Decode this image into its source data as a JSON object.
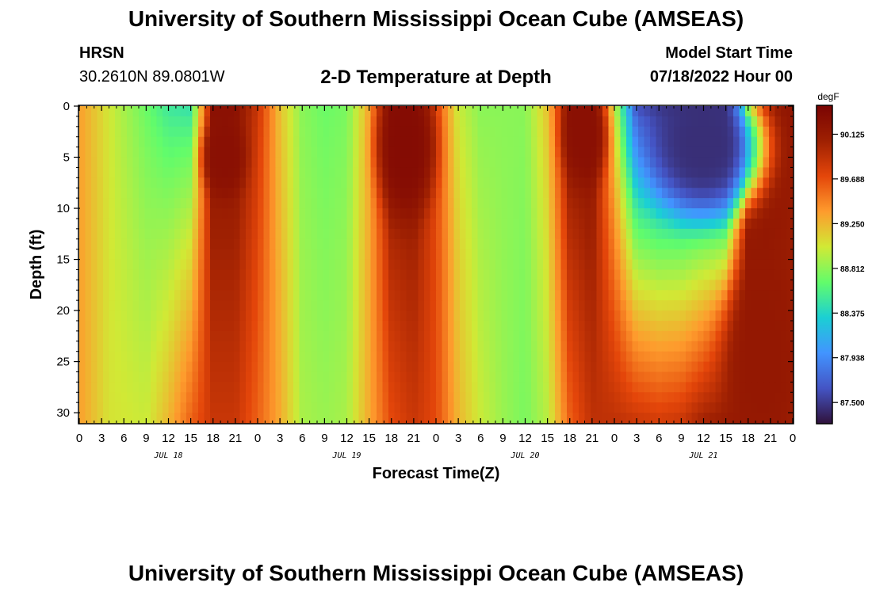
{
  "header": {
    "title": "University of Southern Mississippi Ocean Cube (AMSEAS)",
    "station": "HRSN",
    "coords": "30.2610N  89.0801W",
    "subtitle": "2-D Temperature at Depth",
    "start_label": "Model Start Time",
    "start_value": "07/18/2022 Hour 00"
  },
  "footer": {
    "title": "University of Southern Mississippi Ocean Cube (AMSEAS)"
  },
  "colors": {
    "palette": [
      "#30123b",
      "#4454c4",
      "#4294ff",
      "#1bcfd4",
      "#62fc6b",
      "#d1e935",
      "#fe9b2d",
      "#e4460a",
      "#9e2002",
      "#7a0403"
    ],
    "frame": "#000000"
  },
  "chart_data": {
    "type": "heatmap",
    "title": "2-D Temperature at Depth",
    "xlabel": "Forecast Time(Z)",
    "ylabel": "Depth (ft)",
    "x_hours_range": [
      0,
      96
    ],
    "x_tick_step_hours": 3,
    "x_tick_labels": [
      "0",
      "3",
      "6",
      "9",
      "12",
      "15",
      "18",
      "21",
      "0",
      "3",
      "6",
      "9",
      "12",
      "15",
      "18",
      "21",
      "0",
      "3",
      "6",
      "9",
      "12",
      "15",
      "18",
      "21",
      "0",
      "3",
      "6",
      "9",
      "12",
      "15",
      "18",
      "21",
      "0"
    ],
    "date_labels": [
      {
        "label": "JUL 18",
        "hour": 12
      },
      {
        "label": "JUL 19",
        "hour": 36
      },
      {
        "label": "JUL 20",
        "hour": 60
      },
      {
        "label": "JUL 21",
        "hour": 84
      }
    ],
    "y_range": [
      0,
      31
    ],
    "y_ticks": [
      0,
      5,
      10,
      15,
      20,
      25,
      30
    ],
    "colorbar": {
      "unit": "degF",
      "range": [
        87.3,
        90.4
      ],
      "labels": [
        90.125,
        89.688,
        89.25,
        88.812,
        88.375,
        87.938,
        87.5
      ]
    },
    "surface_profile": {
      "hours": [
        0,
        5,
        9,
        12,
        15,
        18,
        21,
        24,
        27,
        30,
        33,
        36,
        39,
        42,
        45,
        48,
        51,
        54,
        57,
        60,
        63,
        66,
        69,
        72,
        75,
        78,
        81,
        84,
        87,
        90,
        93,
        96
      ],
      "values": [
        89.35,
        88.95,
        88.7,
        88.5,
        88.45,
        90.25,
        90.25,
        89.85,
        89.2,
        88.8,
        88.7,
        88.75,
        89.3,
        90.25,
        90.25,
        89.7,
        89.0,
        88.8,
        88.8,
        88.8,
        89.2,
        90.25,
        90.25,
        89.0,
        87.6,
        87.5,
        87.45,
        87.4,
        87.45,
        90.2,
        90.2,
        90.2
      ]
    },
    "bottom_profile": {
      "hours": [
        0,
        4,
        9,
        12,
        15,
        18,
        21,
        24,
        27,
        30,
        33,
        36,
        39,
        42,
        45,
        48,
        51,
        54,
        57,
        60,
        63,
        66,
        69,
        72,
        75,
        78,
        81,
        84,
        87,
        90,
        93,
        96
      ],
      "values": [
        89.35,
        89.05,
        89.0,
        89.25,
        89.6,
        89.85,
        89.85,
        89.6,
        89.3,
        88.9,
        88.85,
        88.9,
        89.3,
        89.7,
        89.85,
        89.7,
        89.25,
        89.0,
        88.85,
        88.75,
        88.95,
        89.6,
        89.9,
        89.9,
        89.85,
        89.8,
        89.85,
        90.05,
        90.1,
        90.1,
        90.1,
        90.0
      ]
    },
    "features": [
      {
        "name": "cold-pool",
        "center_hour": 84,
        "center_depth": 4,
        "half_width_hours": 8,
        "half_depth": 7,
        "value": 87.45
      },
      {
        "name": "warm-wedge-jul18",
        "center_hour": 19.5,
        "center_depth": 5,
        "half_width_hours": 3,
        "half_depth": 4,
        "value": 90.25
      },
      {
        "name": "warm-wedge-jul19",
        "center_hour": 44,
        "center_depth": 4,
        "half_width_hours": 4,
        "half_depth": 7,
        "value": 90.3
      },
      {
        "name": "warm-wedge-jul20",
        "center_hour": 68,
        "center_depth": 3,
        "half_width_hours": 3,
        "half_depth": 5,
        "value": 90.25
      },
      {
        "name": "warm-deep-jul21",
        "center_hour": 92,
        "center_depth": 25,
        "half_width_hours": 6,
        "half_depth": 10,
        "value": 90.15
      }
    ]
  }
}
